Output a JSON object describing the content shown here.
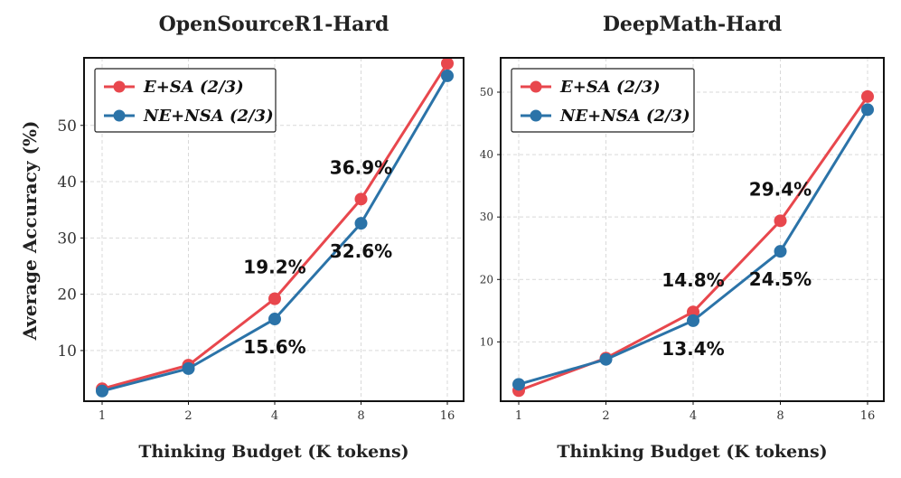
{
  "chart_data": [
    {
      "type": "line",
      "title": "OpenSourceR1-Hard",
      "xlabel": "Thinking Budget (K tokens)",
      "ylabel": "Average Accuracy (%)",
      "categories": [
        "1",
        "2",
        "4",
        "8",
        "16"
      ],
      "ylim": [
        1,
        62
      ],
      "yticks": [
        10,
        20,
        30,
        40,
        50
      ],
      "grid": true,
      "legend_position": "top-left",
      "series": [
        {
          "name": "E+SA (2/3)",
          "color": "#e8474d",
          "values": [
            3.2,
            7.4,
            19.2,
            36.9,
            61.0
          ]
        },
        {
          "name": "NE+NSA (2/3)",
          "color": "#2b73a8",
          "values": [
            2.8,
            6.8,
            15.6,
            32.6,
            58.8
          ]
        }
      ],
      "annotations": [
        {
          "text": "19.2%",
          "series": 0,
          "index": 2,
          "placement": "above"
        },
        {
          "text": "36.9%",
          "series": 0,
          "index": 3,
          "placement": "above"
        },
        {
          "text": "15.6%",
          "series": 1,
          "index": 2,
          "placement": "below"
        },
        {
          "text": "32.6%",
          "series": 1,
          "index": 3,
          "placement": "below"
        }
      ]
    },
    {
      "type": "line",
      "title": "DeepMath-Hard",
      "xlabel": "Thinking Budget (K tokens)",
      "ylabel": "",
      "categories": [
        "1",
        "2",
        "4",
        "8",
        "16"
      ],
      "ylim": [
        0.5,
        55.5
      ],
      "yticks": [
        10,
        20,
        30,
        40,
        50
      ],
      "grid": true,
      "legend_position": "top-left",
      "series": [
        {
          "name": "E+SA (2/3)",
          "color": "#e8474d",
          "values": [
            2.2,
            7.4,
            14.8,
            29.4,
            49.3
          ]
        },
        {
          "name": "NE+NSA (2/3)",
          "color": "#2b73a8",
          "values": [
            3.2,
            7.2,
            13.4,
            24.5,
            47.2
          ]
        }
      ],
      "annotations": [
        {
          "text": "14.8%",
          "series": 0,
          "index": 2,
          "placement": "above"
        },
        {
          "text": "29.4%",
          "series": 0,
          "index": 3,
          "placement": "above"
        },
        {
          "text": "13.4%",
          "series": 1,
          "index": 2,
          "placement": "below"
        },
        {
          "text": "24.5%",
          "series": 1,
          "index": 3,
          "placement": "below"
        }
      ]
    }
  ]
}
